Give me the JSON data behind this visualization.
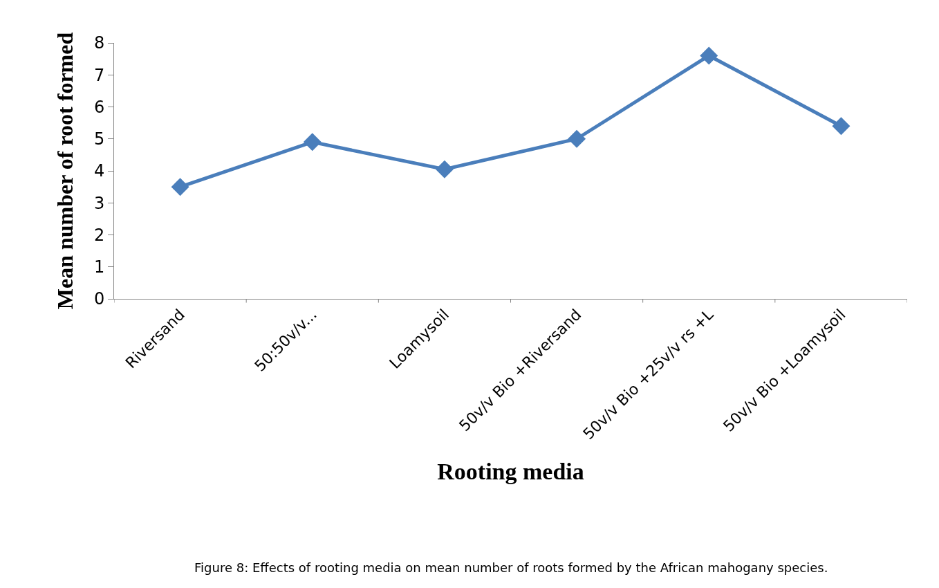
{
  "chart_data": {
    "type": "line",
    "xlabel": "Rooting media",
    "ylabel": "Mean number of root formed",
    "categories": [
      "Riversand",
      "50:50v/v...",
      "Loamysoil",
      "50v/v Bio +Riversand",
      "50v/v Bio +25v/v rs +L",
      "50v/v Bio +Loamysoil"
    ],
    "series": [
      {
        "color": "#4a7ebb",
        "values": [
          3.5,
          4.9,
          4.05,
          5.0,
          7.6,
          5.4
        ]
      }
    ],
    "ylim": [
      0,
      8
    ],
    "yticks": [
      0,
      1,
      2,
      3,
      4,
      5,
      6,
      7,
      8
    ],
    "legend": false,
    "marker": "diamond",
    "line_style": "solid",
    "annotations": [
      "Figure 8: Effects of rooting media on mean number of roots formed by the African mahogany species."
    ]
  }
}
